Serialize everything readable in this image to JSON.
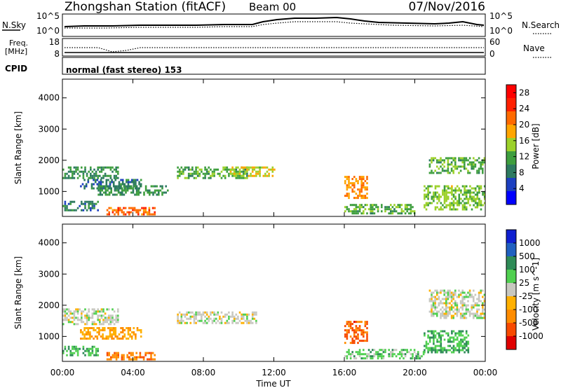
{
  "header": {
    "station": "Zhongshan Station (fitACF)",
    "beam": "Beam 00",
    "date": "07/Nov/2016"
  },
  "top_panels": {
    "nsky_label": "N.Sky",
    "nsky_ticks": [
      "10^5",
      "10^0"
    ],
    "nsearch_label": "N.Search",
    "nsearch_ticks": [
      "10^5",
      "10^0"
    ],
    "freq_label_line1": "Freq.",
    "freq_label_line2": "[MHz]",
    "freq_ticks": [
      "18",
      "8"
    ],
    "nave_label": "Nave",
    "nave_ticks": [
      "60",
      "0"
    ],
    "cpid_label": "CPID",
    "cpid_text": "normal (fast stereo) 153"
  },
  "colors": {
    "power_scale": [
      "#0000ff",
      "#1c3fc0",
      "#2d7a60",
      "#3e9e3e",
      "#9cd12a",
      "#ffa500",
      "#ff6a00",
      "#ff2000",
      "#ff0000"
    ],
    "velocity_scale": [
      "#e00000",
      "#f84a00",
      "#ff8c00",
      "#ffb000",
      "#c8c8c0",
      "#50d050",
      "#2e8b57",
      "#2060c0",
      "#1020d0"
    ]
  },
  "chart_data": [
    {
      "type": "heatmap",
      "title": "",
      "ylabel": "Slant Range [km]",
      "ylim": [
        200,
        4600
      ],
      "yticks": [
        "1000",
        "2000",
        "3000",
        "4000"
      ],
      "xticks": [
        "00:00",
        "04:00",
        "08:00",
        "12:00",
        "16:00",
        "20:00",
        "00:00"
      ],
      "colorbar_label": "Power [dB]",
      "colorbar_ticks": [
        "4",
        "8",
        "12",
        "16",
        "20",
        "24",
        "28"
      ],
      "colorbar_range": [
        0,
        30
      ],
      "regions": [
        {
          "t0": 0.0,
          "t1": 3.2,
          "r0": 1400,
          "r1": 1800,
          "level": 10
        },
        {
          "t0": 1.0,
          "t1": 4.5,
          "r0": 1100,
          "r1": 1400,
          "level": 8
        },
        {
          "t0": 0.0,
          "t1": 2.0,
          "r0": 400,
          "r1": 700,
          "level": 8
        },
        {
          "t0": 2.0,
          "t1": 6.0,
          "r0": 900,
          "r1": 1200,
          "level": 10
        },
        {
          "t0": 2.5,
          "t1": 5.2,
          "r0": 250,
          "r1": 500,
          "level": 22
        },
        {
          "t0": 6.5,
          "t1": 10.5,
          "r0": 1400,
          "r1": 1800,
          "level": 12
        },
        {
          "t0": 9.5,
          "t1": 12.0,
          "r0": 1500,
          "r1": 1800,
          "level": 16
        },
        {
          "t0": 16.0,
          "t1": 17.3,
          "r0": 800,
          "r1": 1500,
          "level": 20
        },
        {
          "t0": 16.0,
          "t1": 20.0,
          "r0": 300,
          "r1": 600,
          "level": 12
        },
        {
          "t0": 20.8,
          "t1": 24.0,
          "r0": 1600,
          "r1": 2100,
          "level": 12
        },
        {
          "t0": 20.5,
          "t1": 24.0,
          "r0": 400,
          "r1": 1200,
          "level": 14
        }
      ]
    },
    {
      "type": "heatmap",
      "title": "",
      "ylabel": "Slant Range [km]",
      "xlabel": "Time UT",
      "ylim": [
        200,
        4600
      ],
      "yticks": [
        "1000",
        "2000",
        "3000",
        "4000"
      ],
      "xticks": [
        "00:00",
        "04:00",
        "08:00",
        "12:00",
        "16:00",
        "20:00",
        "00:00"
      ],
      "colorbar_label": "Velocity [m s^-1]",
      "colorbar_ticks": [
        "1000",
        "500",
        "100",
        "25",
        "-25",
        "-100",
        "-500",
        "-1000"
      ],
      "colorbar_range": [
        -1000,
        1000
      ],
      "regions": [
        {
          "t0": 0.0,
          "t1": 3.2,
          "r0": 1400,
          "r1": 1900,
          "level": 0
        },
        {
          "t0": 1.0,
          "t1": 4.5,
          "r0": 900,
          "r1": 1300,
          "level": -300
        },
        {
          "t0": 0.0,
          "t1": 2.0,
          "r0": 400,
          "r1": 700,
          "level": 300
        },
        {
          "t0": 2.5,
          "t1": 5.2,
          "r0": 250,
          "r1": 500,
          "level": -500
        },
        {
          "t0": 6.5,
          "t1": 11.0,
          "r0": 1400,
          "r1": 1800,
          "level": 0
        },
        {
          "t0": 16.0,
          "t1": 17.3,
          "r0": 800,
          "r1": 1500,
          "level": -600
        },
        {
          "t0": 16.0,
          "t1": 20.5,
          "r0": 300,
          "r1": 600,
          "level": 200
        },
        {
          "t0": 20.8,
          "t1": 24.0,
          "r0": 1600,
          "r1": 2500,
          "level": 0
        },
        {
          "t0": 20.5,
          "t1": 23.0,
          "r0": 500,
          "r1": 1200,
          "level": 300
        }
      ]
    }
  ]
}
